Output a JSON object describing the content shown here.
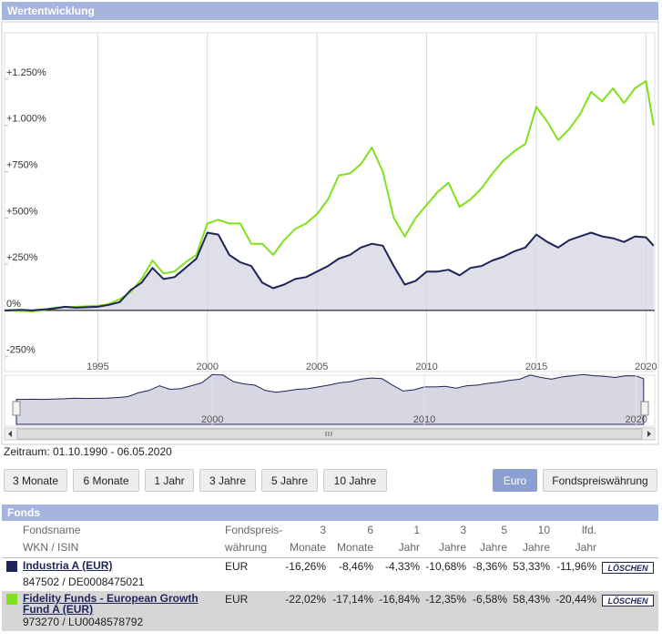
{
  "header": {
    "title": "Wertentwicklung"
  },
  "chart_data": {
    "type": "line",
    "x": [
      1990.75,
      1991.5,
      1992,
      1992.5,
      1993,
      1993.5,
      1994,
      1995,
      1995.5,
      1996,
      1996.5,
      1997,
      1997.5,
      1998,
      1998.5,
      1999,
      1999.5,
      2000,
      2000.5,
      2001,
      2001.5,
      2002,
      2002.5,
      2003,
      2003.5,
      2004,
      2004.5,
      2005,
      2005.5,
      2006,
      2006.5,
      2007,
      2007.5,
      2008,
      2008.5,
      2009,
      2009.5,
      2010,
      2010.5,
      2011,
      2011.5,
      2012,
      2012.5,
      2013,
      2013.5,
      2014,
      2014.5,
      2015,
      2015.5,
      2016,
      2016.5,
      2017,
      2017.5,
      2018,
      2018.5,
      2019,
      2019.5,
      2020,
      2020.35
    ],
    "series": [
      {
        "name": "Industria A (EUR)",
        "color": "#1f2559",
        "fill": true,
        "values": [
          0,
          3,
          0,
          5,
          10,
          20,
          15,
          20,
          30,
          45,
          110,
          150,
          230,
          170,
          180,
          230,
          280,
          420,
          410,
          300,
          260,
          240,
          150,
          120,
          140,
          170,
          180,
          210,
          240,
          280,
          300,
          340,
          360,
          350,
          240,
          140,
          160,
          210,
          210,
          220,
          190,
          230,
          240,
          270,
          290,
          320,
          340,
          410,
          370,
          340,
          380,
          400,
          420,
          400,
          390,
          370,
          400,
          395,
          350
        ]
      },
      {
        "name": "Fidelity Funds - European Growth Fund A (EUR)",
        "color": "#80e01c",
        "values": [
          0,
          -3,
          -5,
          0,
          15,
          18,
          20,
          25,
          35,
          60,
          100,
          170,
          270,
          200,
          210,
          260,
          300,
          470,
          490,
          470,
          470,
          360,
          360,
          300,
          380,
          440,
          470,
          520,
          600,
          730,
          740,
          790,
          880,
          750,
          500,
          400,
          500,
          570,
          640,
          690,
          560,
          600,
          660,
          740,
          810,
          860,
          900,
          1100,
          1020,
          920,
          980,
          1060,
          1180,
          1130,
          1200,
          1120,
          1200,
          1240,
          1000
        ]
      }
    ],
    "xlim": [
      1990.75,
      2020.4
    ],
    "xticks": [
      1995,
      2000,
      2005,
      2010,
      2015,
      2020
    ],
    "ylim": [
      -330,
      1500
    ],
    "yticks": [
      {
        "value": -250,
        "label": "-250%"
      },
      {
        "value": 0,
        "label": "0%"
      },
      {
        "value": 250,
        "label": "+250%"
      },
      {
        "value": 500,
        "label": "+500%"
      },
      {
        "value": 750,
        "label": "+750%"
      },
      {
        "value": 1000,
        "label": "+1.000%"
      },
      {
        "value": 1250,
        "label": "+1.250%"
      }
    ],
    "grid": "x",
    "navigator_ticks": [
      2000,
      2010,
      2020
    ]
  },
  "period": "Zeitraum: 01.10.1990 - 06.05.2020",
  "period_buttons": [
    "3 Monate",
    "6 Monate",
    "1 Jahr",
    "3 Jahre",
    "5 Jahre",
    "10 Jahre"
  ],
  "currency_buttons": [
    "Euro",
    "Fondspreiswährung"
  ],
  "table": {
    "title": "Fonds",
    "columns": [
      [
        "Fondsname",
        "WKN / ISIN"
      ],
      [
        "Fondspreis-",
        "währung"
      ],
      [
        "3",
        "Monate"
      ],
      [
        "6",
        "Monate"
      ],
      [
        "1",
        "Jahr"
      ],
      [
        "3",
        "Jahre"
      ],
      [
        "5",
        "Jahre"
      ],
      [
        "10",
        "Jahre"
      ],
      [
        "lfd.",
        "Jahr"
      ]
    ],
    "rows": [
      {
        "id": "847502 / DE0008475021",
        "currency": "EUR",
        "returns": [
          "-16,26%",
          "-8,46%",
          "-4,33%",
          "-10,68%",
          "-8,36%",
          "53,33%",
          "-11,96%"
        ],
        "action": "LÖSCHEN"
      },
      {
        "id": "973270 / LU0048578792",
        "currency": "EUR",
        "returns": [
          "-22,02%",
          "-17,14%",
          "-16,84%",
          "-12,35%",
          "-6,58%",
          "58,43%",
          "-20,44%"
        ],
        "action": "LÖSCHEN"
      }
    ]
  }
}
